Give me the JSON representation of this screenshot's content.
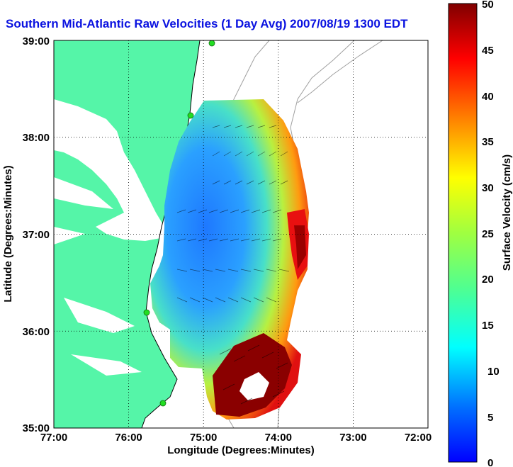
{
  "title": "Southern Mid-Atlantic Raw Velocities (1 Day Avg) 2007/08/19 1300 EDT",
  "map": {
    "xlabel": "Longitude (Degrees:Minutes)",
    "ylabel": "Latitude (Degrees:Minutes)",
    "x_ticks": [
      "77:00",
      "76:00",
      "75:00",
      "74:00",
      "73:00",
      "72:00"
    ],
    "y_ticks": [
      "39:00",
      "38:00",
      "37:00",
      "36:00",
      "35:00"
    ],
    "lon_range": [
      -77,
      -72
    ],
    "lat_range": [
      35,
      39
    ],
    "grid": "dotted",
    "colors": {
      "land": "#55f5a8",
      "water": "#ffffff",
      "sites": "#22dd22"
    }
  },
  "colorbar": {
    "label": "Surface Velocity (cm/s)",
    "ticks": [
      "50",
      "45",
      "40",
      "35",
      "30",
      "25",
      "20",
      "15",
      "10",
      "5",
      "0"
    ],
    "min": 0,
    "max": 50,
    "colormap": "jet"
  }
}
